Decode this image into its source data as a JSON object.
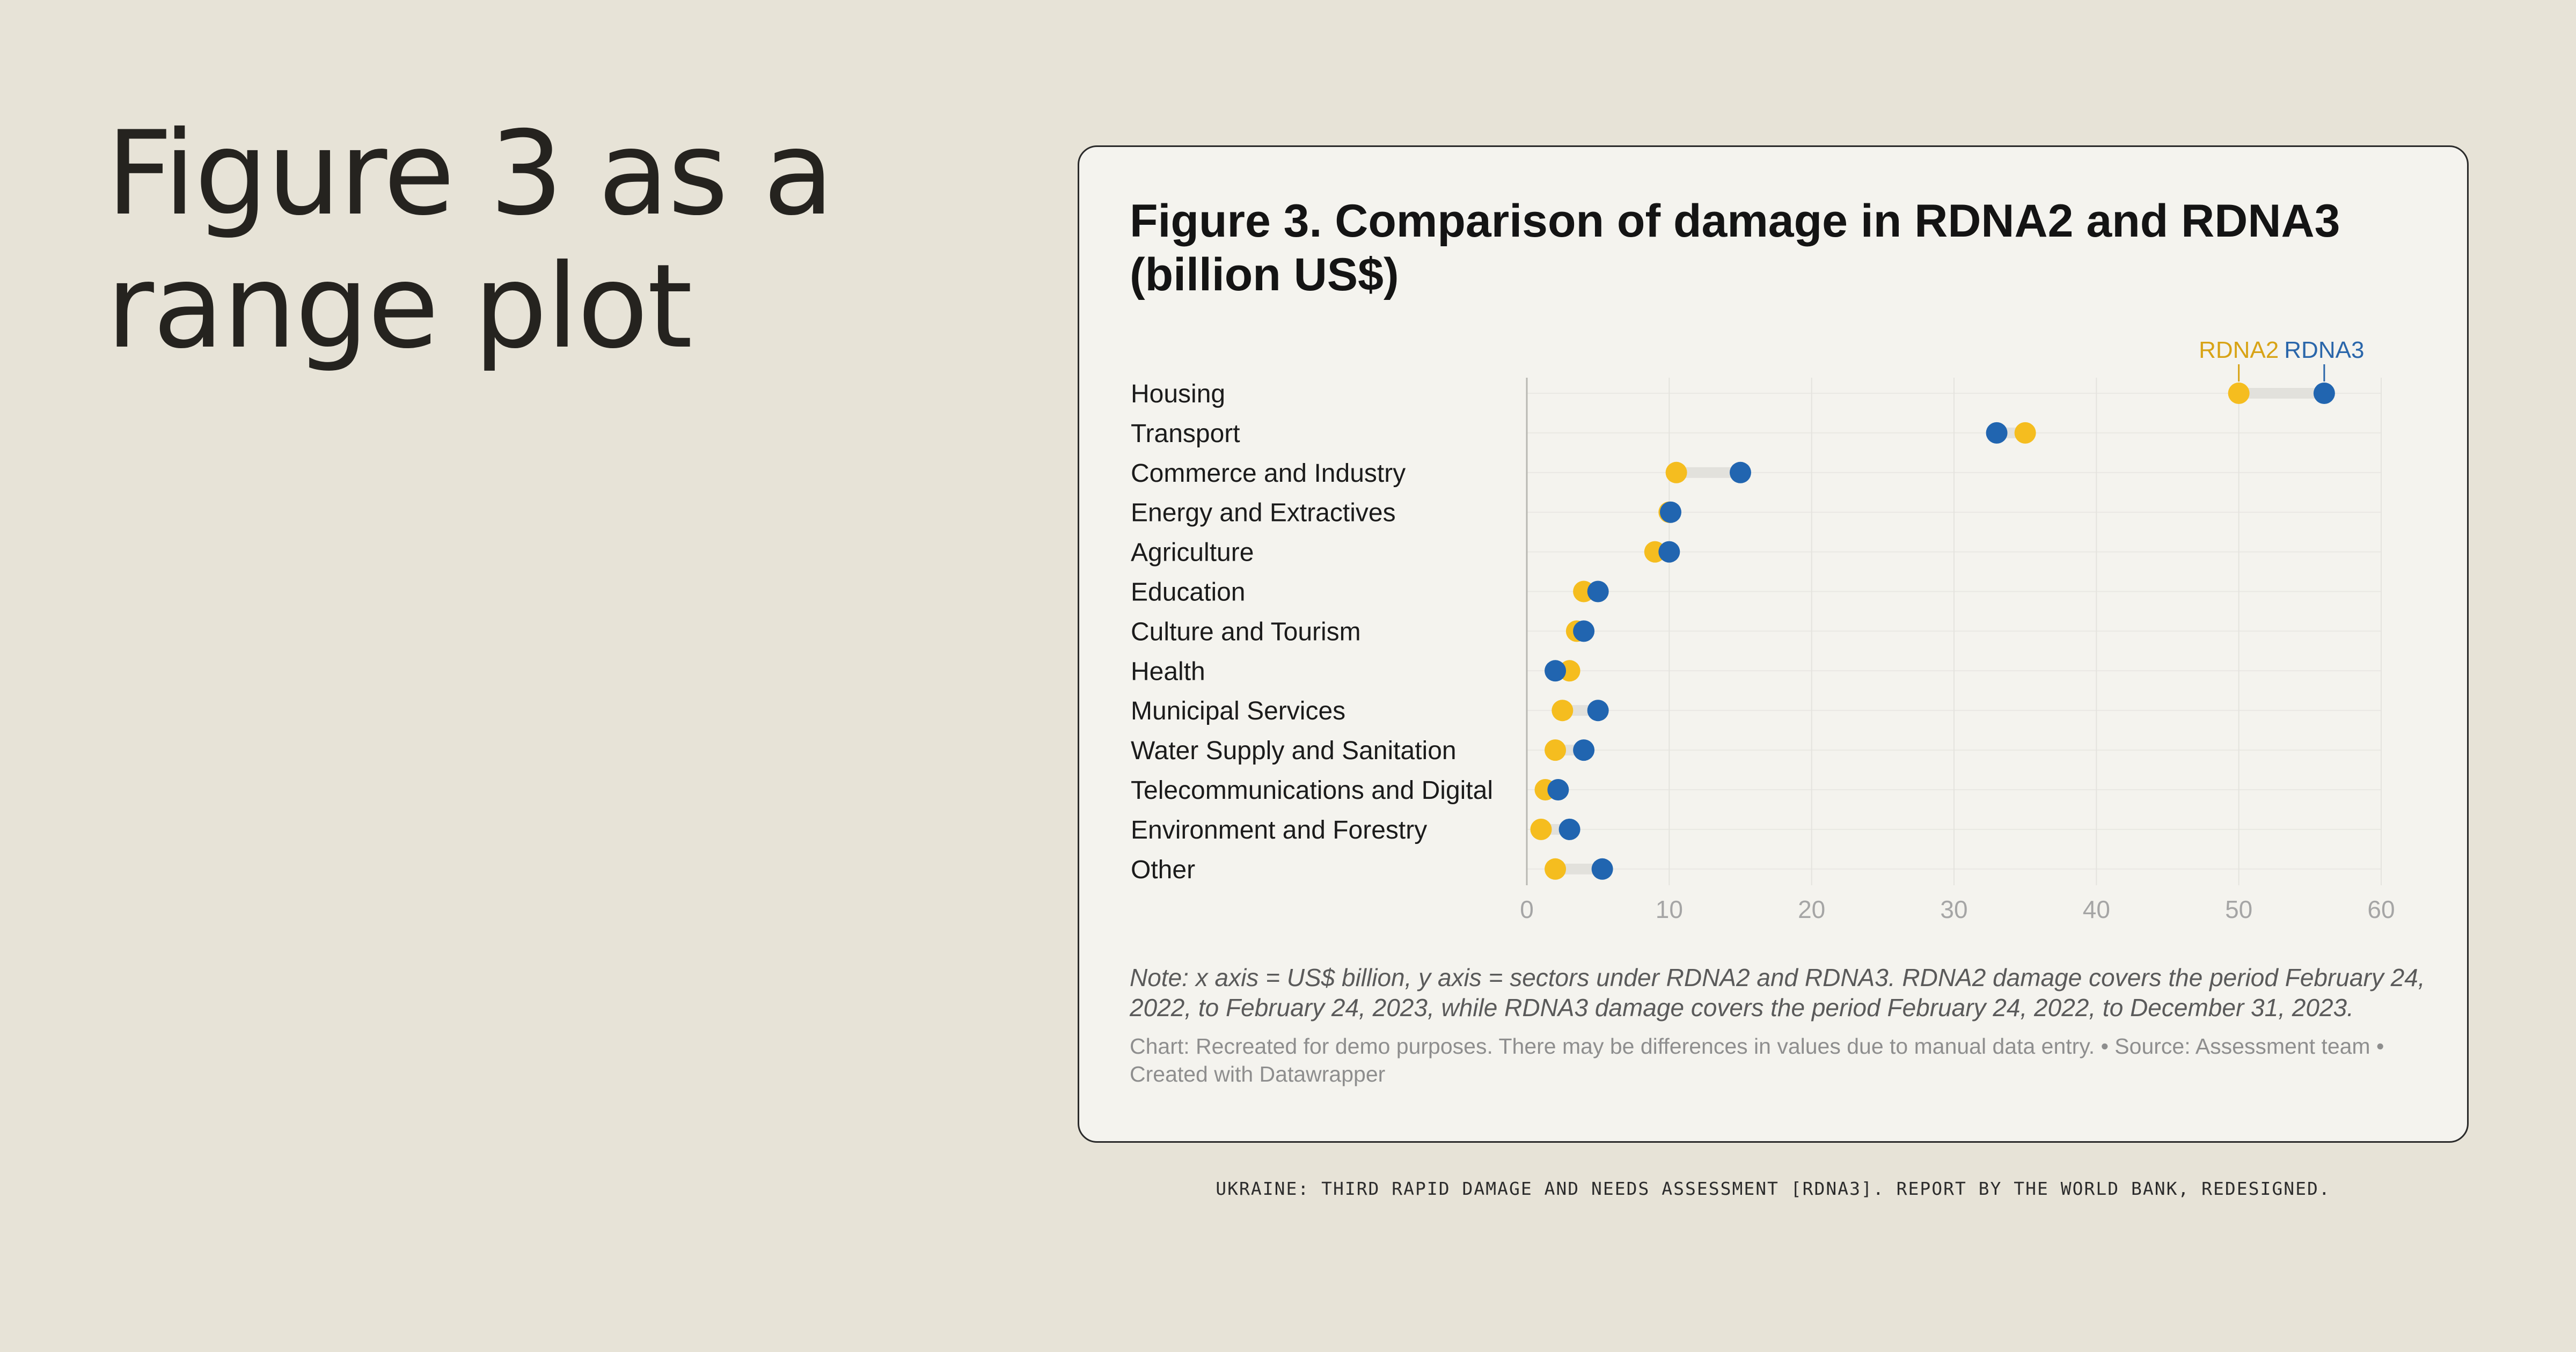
{
  "slide": {
    "title": "Figure 3 as a range plot",
    "caption": "UKRAINE: THIRD RAPID DAMAGE AND NEEDS ASSESSMENT [RDNA3]. REPORT BY THE WORLD BANK, REDESIGNED."
  },
  "card": {
    "note": "Note: x axis = US$ billion, y axis = sectors under RDNA2 and RDNA3. RDNA2 damage covers the period February 24, 2022, to February 24, 2023, while RDNA3 damage covers the period February 24, 2022, to December 31, 2023.",
    "credit": "Chart: Recreated for demo purposes. There may be differences in values due to manual data entry. • Source: Assessment team • Created with Datawrapper"
  },
  "colors": {
    "background": "#e7e3d7",
    "card": "#f4f3ee",
    "rdna2": "#f5bd1f",
    "rdna3": "#2165b0",
    "range_bar": "#e2e1dc",
    "rdna2_label": "#d8a315",
    "rdna3_label": "#2a66aa"
  },
  "chart_data": {
    "type": "range",
    "title": "Figure 3. Comparison of damage in RDNA2 and RDNA3 (billion US$)",
    "xlabel": "",
    "ylabel": "",
    "xlim": [
      0,
      60
    ],
    "x_ticks": [
      0,
      10,
      20,
      30,
      40,
      50,
      60
    ],
    "grid": true,
    "legend_placement": "top-right, labels above the Housing row",
    "categories": [
      "Housing",
      "Transport",
      "Commerce and Industry",
      "Energy and Extractives",
      "Agriculture",
      "Education",
      "Culture and Tourism",
      "Health",
      "Municipal Services",
      "Water Supply and Sanitation",
      "Telecommunications and Digital",
      "Environment and Forestry",
      "Other"
    ],
    "series": [
      {
        "name": "RDNA2",
        "color": "#f5bd1f",
        "values": [
          50.0,
          35.0,
          10.5,
          10.0,
          9.0,
          4.0,
          3.5,
          3.0,
          2.5,
          2.0,
          1.3,
          1.0,
          2.0
        ]
      },
      {
        "name": "RDNA3",
        "color": "#2165b0",
        "values": [
          56.0,
          33.0,
          15.0,
          10.1,
          10.0,
          5.0,
          4.0,
          2.0,
          5.0,
          4.0,
          2.2,
          3.0,
          5.3
        ]
      }
    ]
  }
}
